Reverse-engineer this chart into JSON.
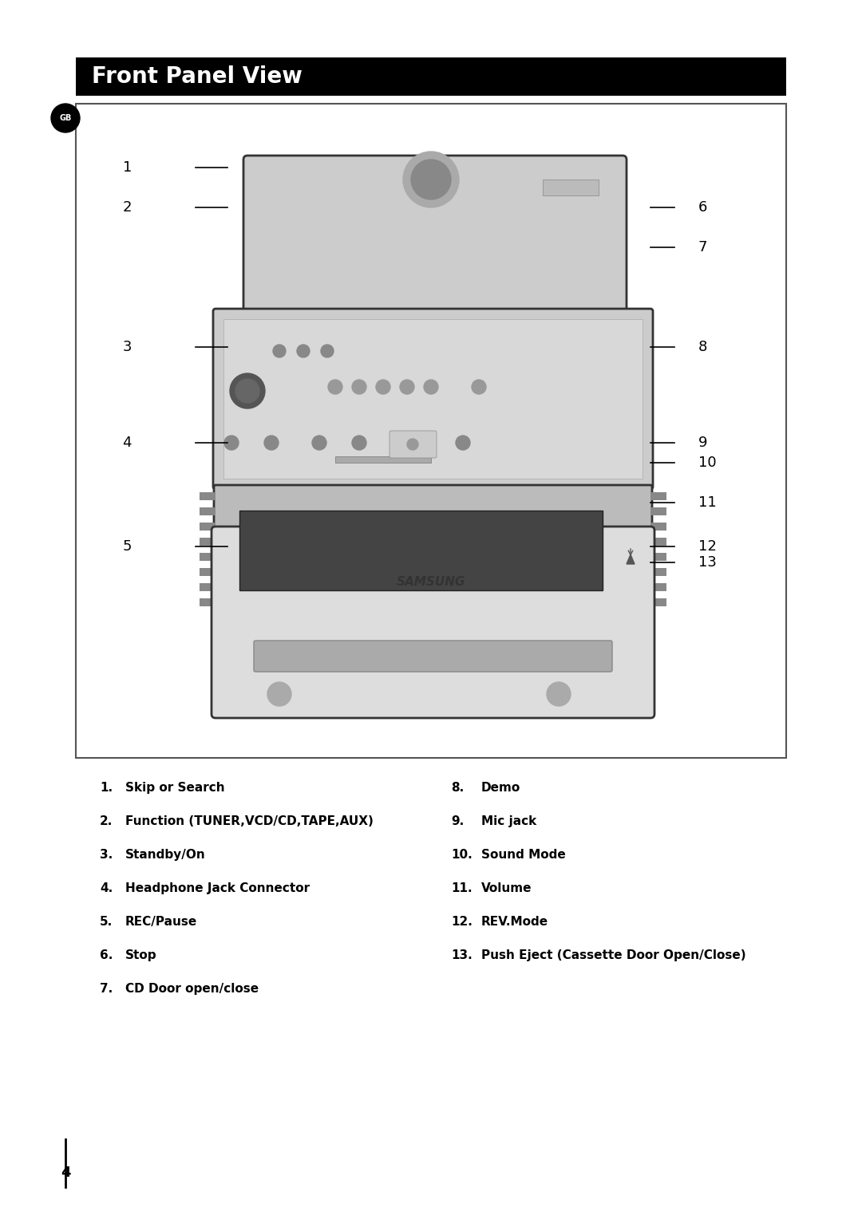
{
  "title": "Front Panel View",
  "title_bg": "#000000",
  "title_color": "#ffffff",
  "title_fontsize": 20,
  "page_bg": "#ffffff",
  "gb_label": "GB",
  "left_labels": [
    "1",
    "2",
    "3",
    "4",
    "5"
  ],
  "right_labels": [
    "6",
    "7",
    "8",
    "9",
    "10",
    "11",
    "12",
    "13"
  ],
  "items_left": [
    {
      "num": "1.",
      "text": "Skip or Search"
    },
    {
      "num": "2.",
      "text": "Function (TUNER,VCD/CD,TAPE,AUX)"
    },
    {
      "num": "3.",
      "text": "Standby/On"
    },
    {
      "num": "4.",
      "text": "Headphone Jack Connector"
    },
    {
      "num": "5.",
      "text": "REC/Pause"
    },
    {
      "num": "6.",
      "text": "Stop"
    },
    {
      "num": "7.",
      "text": "CD Door open/close"
    }
  ],
  "items_right": [
    {
      "num": "8.",
      "text": "Demo"
    },
    {
      "num": "9.",
      "text": "Mic jack"
    },
    {
      "num": "10.",
      "text": "Sound Mode"
    },
    {
      "num": "11.",
      "text": "Volume"
    },
    {
      "num": "12.",
      "text": "REV.Mode"
    },
    {
      "num": "13.",
      "text": "Push Eject (Cassette Door Open/Close)"
    }
  ],
  "page_number": "4",
  "border_color": "#333333",
  "line_color": "#000000"
}
